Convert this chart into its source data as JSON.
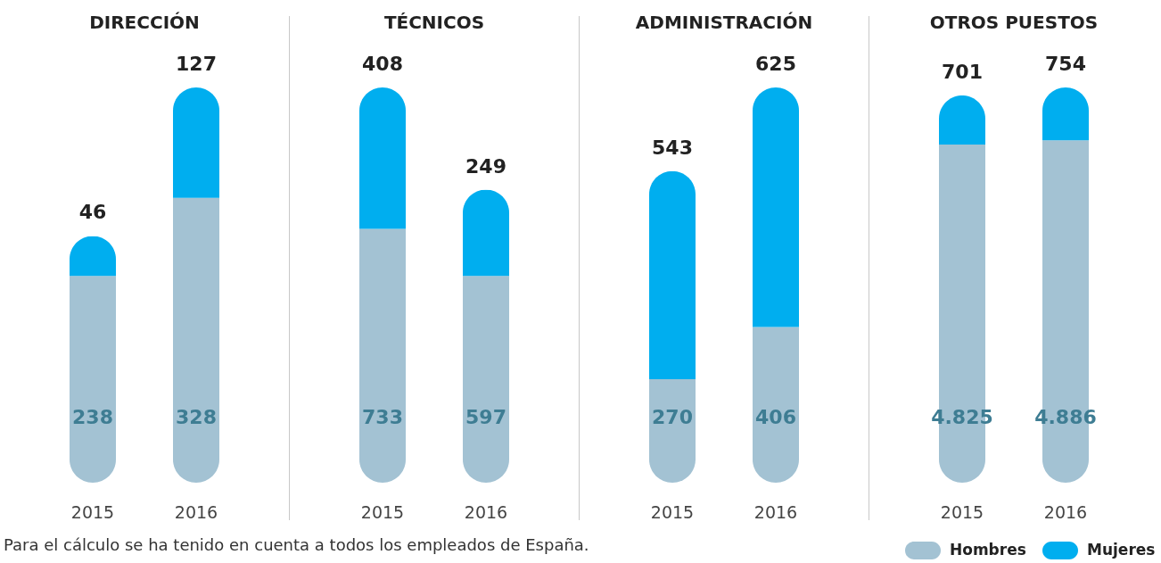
{
  "chart_data": [
    {
      "type": "bar",
      "title": "DIRECCIÓN",
      "categories": [
        "2015",
        "2016"
      ],
      "stacked": true,
      "tick_labels": "x",
      "series": [
        {
          "color": "#a3c2d3",
          "values": [
            238,
            328
          ],
          "value_labels": [
            "238",
            "328"
          ]
        },
        {
          "color": "#00aeef",
          "values": [
            46,
            127
          ],
          "value_labels": [
            "46",
            "127"
          ]
        }
      ],
      "annotations": [
        "Para el cálculo se ha tenido en cuenta a todos los empleados de España."
      ]
    },
    {
      "type": "bar",
      "title": "TÉCNICOS",
      "categories": [
        "2015",
        "2016"
      ],
      "stacked": true,
      "tick_labels": "x",
      "series": [
        {
          "color": "#a3c2d3",
          "values": [
            733,
            597
          ],
          "value_labels": [
            "733",
            "597"
          ]
        },
        {
          "color": "#00aeef",
          "values": [
            408,
            249
          ],
          "value_labels": [
            "408",
            "249"
          ]
        }
      ]
    },
    {
      "type": "bar",
      "title": "ADMINISTRACIÓN",
      "categories": [
        "2015",
        "2016"
      ],
      "stacked": true,
      "tick_labels": "x",
      "series": [
        {
          "color": "#a3c2d3",
          "values": [
            270,
            406
          ],
          "value_labels": [
            "270",
            "406"
          ]
        },
        {
          "color": "#00aeef",
          "values": [
            543,
            625
          ],
          "value_labels": [
            "543",
            "625"
          ]
        }
      ]
    },
    {
      "type": "bar",
      "title": "OTROS PUESTOS",
      "categories": [
        "2015",
        "2016"
      ],
      "stacked": true,
      "tick_labels": "x",
      "legend": "bottom right",
      "series": [
        {
          "name": "Hombres",
          "color": "#a3c2d3",
          "values": [
            4825,
            4886
          ],
          "value_labels": [
            "4.825",
            "4.886"
          ]
        },
        {
          "name": "Mujeres",
          "color": "#00aeef",
          "values": [
            701,
            754
          ],
          "value_labels": [
            "701",
            "754"
          ]
        }
      ]
    }
  ]
}
